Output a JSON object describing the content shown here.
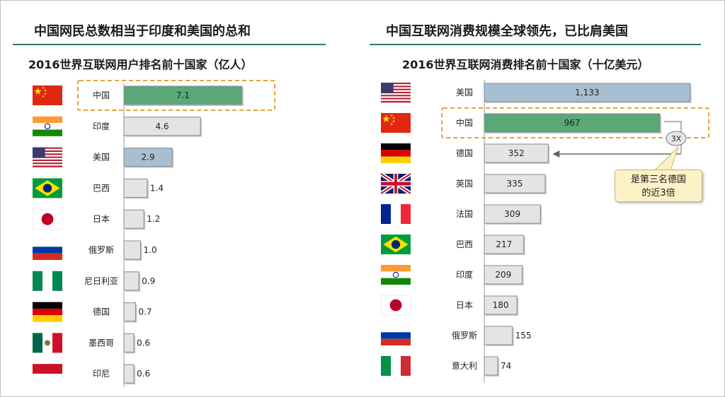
{
  "left": {
    "panel_title": "中国网民总数相当于印度和美国的总和",
    "chart_title": "2016世界互联网用户排名前十国家（亿人）"
  },
  "right": {
    "panel_title": "中国互联网消费规模全球领先，已比肩美国",
    "chart_title": "2016世界互联网消费排名前十国家（十亿美元）",
    "ratio_label": "3X",
    "callout_lines": [
      "是第三名德国",
      "的近3倍"
    ]
  },
  "colors": {
    "highlight_green": "#5aa877",
    "light_blue": "#a7bfd1",
    "gray": "#e4e4e4",
    "accent_orange": "#e8a23a",
    "rule_green": "#2e7d5b"
  },
  "chart_data": [
    {
      "type": "bar",
      "orientation": "horizontal",
      "title": "2016世界互联网用户排名前十国家（亿人）",
      "categories": [
        "中国",
        "印度",
        "美国",
        "巴西",
        "日本",
        "俄罗斯",
        "尼日利亚",
        "德国",
        "墨西哥",
        "印尼"
      ],
      "values": [
        7.1,
        4.6,
        2.9,
        1.4,
        1.2,
        1.0,
        0.9,
        0.7,
        0.6,
        0.6
      ],
      "value_labels": [
        "7.1",
        "4.6",
        "2.9",
        "1.4",
        "1.2",
        "1.0",
        "0.9",
        "0.7",
        "0.6",
        "0.6"
      ],
      "flags": [
        "cn",
        "in",
        "us",
        "br",
        "jp",
        "ru",
        "ng",
        "de",
        "mx",
        "id"
      ],
      "bar_colors": [
        "#5aa877",
        "#e4e4e4",
        "#a7bfd1",
        "#e4e4e4",
        "#e4e4e4",
        "#e4e4e4",
        "#e4e4e4",
        "#e4e4e4",
        "#e4e4e4",
        "#e4e4e4"
      ],
      "highlight_index": 0,
      "xlabel": "",
      "ylabel": "",
      "grid": false
    },
    {
      "type": "bar",
      "orientation": "horizontal",
      "title": "2016世界互联网消费排名前十国家（十亿美元）",
      "categories": [
        "美国",
        "中国",
        "德国",
        "英国",
        "法国",
        "巴西",
        "印度",
        "日本",
        "俄罗斯",
        "意大利"
      ],
      "values": [
        1133,
        967,
        352,
        335,
        309,
        217,
        209,
        180,
        155,
        74
      ],
      "value_labels": [
        "1,133",
        "967",
        "352",
        "335",
        "309",
        "217",
        "209",
        "180",
        "155",
        "74"
      ],
      "flags": [
        "us",
        "cn",
        "de",
        "gb",
        "fr",
        "br",
        "in",
        "jp",
        "ru",
        "it"
      ],
      "bar_colors": [
        "#a7bfd1",
        "#5aa877",
        "#e4e4e4",
        "#e4e4e4",
        "#e4e4e4",
        "#e4e4e4",
        "#e4e4e4",
        "#e4e4e4",
        "#e4e4e4",
        "#e4e4e4"
      ],
      "highlight_index": 1,
      "annotation": {
        "from_index": 1,
        "to_index": 2,
        "ratio": "3X",
        "text": "是第三名德国的近3倍"
      },
      "xlabel": "",
      "ylabel": "",
      "grid": false
    }
  ]
}
